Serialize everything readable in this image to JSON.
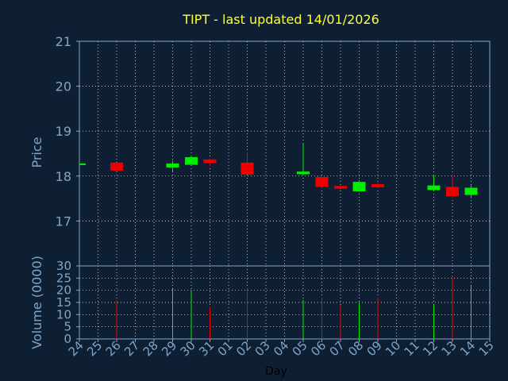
{
  "chart_data": {
    "type": "candlestick",
    "title": "TIPT - last updated 14/01/2026",
    "price_panel": {
      "ylabel": "Price",
      "ylim": [
        16.0,
        21.0
      ],
      "yticks": [
        17,
        18,
        19,
        20,
        21
      ],
      "grid": true
    },
    "volume_panel": {
      "ylabel": "Volume (0000)",
      "ylim": [
        0,
        30
      ],
      "yticks": [
        0,
        5,
        10,
        15,
        20,
        25,
        30
      ],
      "grid": true
    },
    "xlabel": "Day",
    "x_ticks": [
      "24",
      "25",
      "26",
      "27",
      "28",
      "29",
      "30",
      "31",
      "01",
      "02",
      "03",
      "04",
      "05",
      "06",
      "07",
      "08",
      "09",
      "10",
      "11",
      "12",
      "13",
      "14",
      "15"
    ],
    "colors": {
      "up": "#00ee00",
      "down": "#ee0000",
      "grid": "#ffffff",
      "frame": "#7fa6c9"
    },
    "candles": [
      {
        "day": "24",
        "open": 18.27,
        "high": 18.29,
        "low": 18.26,
        "close": 18.28,
        "volume": 0
      },
      {
        "day": "26",
        "open": 18.3,
        "high": 18.3,
        "low": 18.12,
        "close": 18.12,
        "volume": 16
      },
      {
        "day": "29",
        "open": 18.19,
        "high": 18.34,
        "low": 18.08,
        "close": 18.28,
        "volume": 21
      },
      {
        "day": "30",
        "open": 18.25,
        "high": 18.45,
        "low": 18.25,
        "close": 18.42,
        "volume": 20
      },
      {
        "day": "31",
        "open": 18.37,
        "high": 18.39,
        "low": 18.22,
        "close": 18.29,
        "volume": 13
      },
      {
        "day": "02",
        "open": 18.3,
        "high": 18.53,
        "low": 18.03,
        "close": 18.03,
        "volume": 21
      },
      {
        "day": "05",
        "open": 18.04,
        "high": 18.74,
        "low": 18.02,
        "close": 18.1,
        "volume": 16
      },
      {
        "day": "06",
        "open": 17.98,
        "high": 17.98,
        "low": 17.72,
        "close": 17.76,
        "volume": 17
      },
      {
        "day": "07",
        "open": 17.78,
        "high": 17.78,
        "low": 17.68,
        "close": 17.72,
        "volume": 14
      },
      {
        "day": "08",
        "open": 17.66,
        "high": 17.91,
        "low": 17.66,
        "close": 17.87,
        "volume": 15
      },
      {
        "day": "09",
        "open": 17.82,
        "high": 17.84,
        "low": 17.73,
        "close": 17.75,
        "volume": 17
      },
      {
        "day": "12",
        "open": 17.69,
        "high": 18.02,
        "low": 17.66,
        "close": 17.79,
        "volume": 14
      },
      {
        "day": "13",
        "open": 17.76,
        "high": 18.04,
        "low": 17.51,
        "close": 17.55,
        "volume": 26
      },
      {
        "day": "14",
        "open": 17.58,
        "high": 17.79,
        "low": 17.51,
        "close": 17.74,
        "volume": 22
      }
    ]
  }
}
